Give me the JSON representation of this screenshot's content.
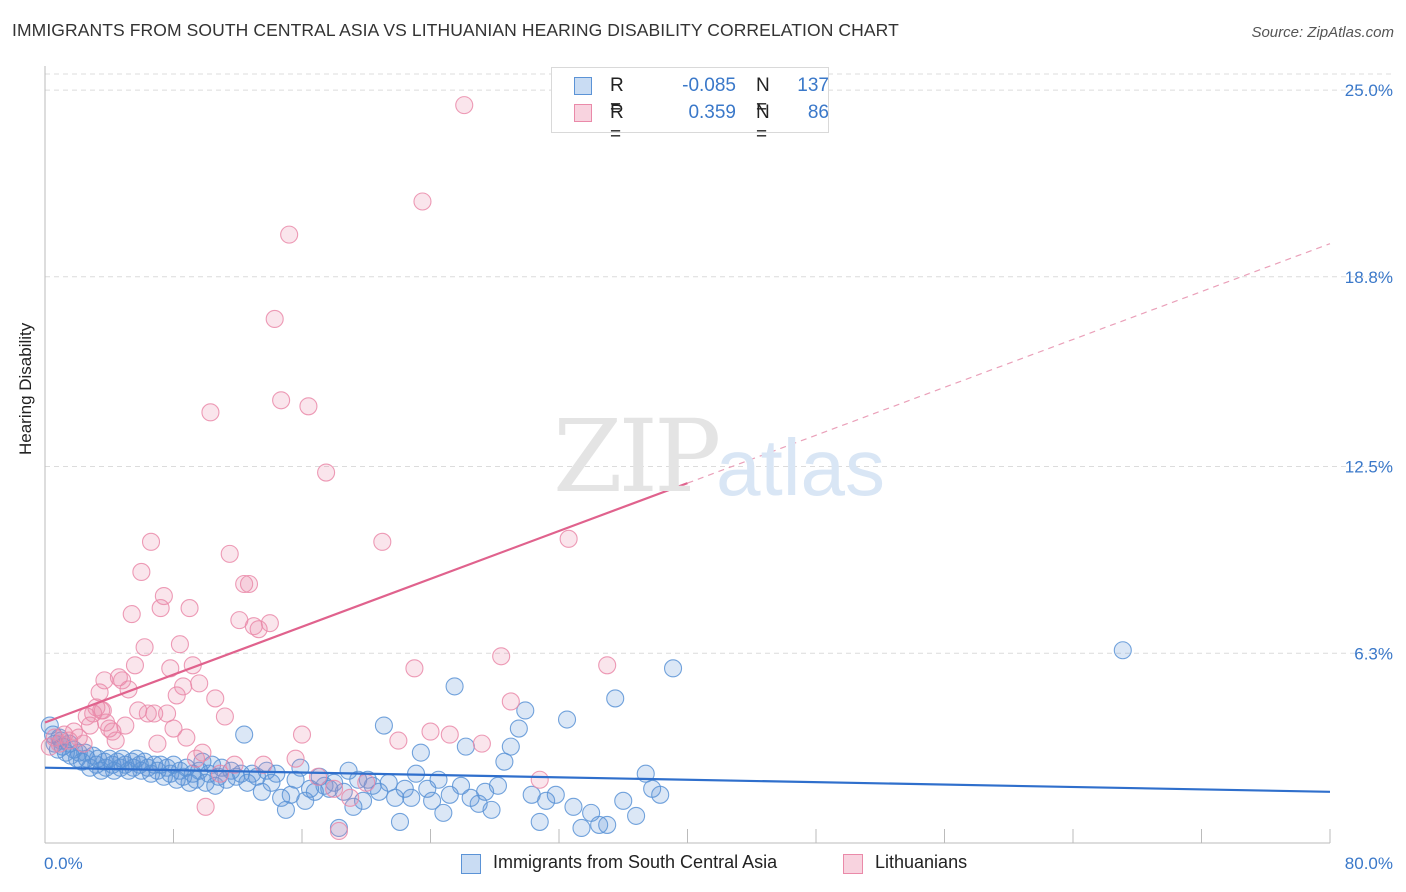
{
  "header": {
    "title": "IMMIGRANTS FROM SOUTH CENTRAL ASIA VS LITHUANIAN HEARING DISABILITY CORRELATION CHART",
    "source": "Source: ZipAtlas.com"
  },
  "watermark": {
    "zip": "ZIP",
    "atlas": "atlas"
  },
  "legend": {
    "rows": [
      {
        "r_label": "R =",
        "r_value": "-0.085",
        "n_label": "N =",
        "n_value": "137",
        "color": "#5b93d6"
      },
      {
        "r_label": "R =",
        "r_value": "0.359",
        "n_label": "N =",
        "n_value": "86",
        "color": "#ea8aa9"
      }
    ]
  },
  "bottom_legend": [
    {
      "label": "Immigrants from South Central Asia",
      "color": "#5b93d6"
    },
    {
      "label": "Lithuanians",
      "color": "#ea8aa9"
    }
  ],
  "chart_data": {
    "type": "scatter",
    "title": "IMMIGRANTS FROM SOUTH CENTRAL ASIA VS LITHUANIAN HEARING DISABILITY CORRELATION CHART",
    "xlabel": "",
    "ylabel": "Hearing Disability",
    "xlim": [
      0,
      80
    ],
    "ylim": [
      0,
      25.6
    ],
    "x_tick_labels": [
      "0.0%",
      "80.0%"
    ],
    "y_ticks": [
      6.3,
      12.5,
      18.8,
      25.0
    ],
    "y_tick_labels": [
      "6.3%",
      "12.5%",
      "18.8%",
      "25.0%"
    ],
    "grid": true,
    "legend_position": "top-center",
    "series": [
      {
        "name": "Immigrants from South Central Asia",
        "color": "#5b93d6",
        "trend": {
          "x": [
            0,
            80
          ],
          "y": [
            2.5,
            1.7
          ],
          "style": "solid"
        },
        "points": [
          [
            0.3,
            3.9
          ],
          [
            0.5,
            3.6
          ],
          [
            0.6,
            3.3
          ],
          [
            0.8,
            3.1
          ],
          [
            1.0,
            3.4
          ],
          [
            1.1,
            3.2
          ],
          [
            1.3,
            3.0
          ],
          [
            1.5,
            3.3
          ],
          [
            1.6,
            2.9
          ],
          [
            1.8,
            3.1
          ],
          [
            2.0,
            2.8
          ],
          [
            2.1,
            3.0
          ],
          [
            2.3,
            2.7
          ],
          [
            2.5,
            3.0
          ],
          [
            2.6,
            2.8
          ],
          [
            2.8,
            2.5
          ],
          [
            3.0,
            2.9
          ],
          [
            3.2,
            2.6
          ],
          [
            3.3,
            2.8
          ],
          [
            3.5,
            2.4
          ],
          [
            3.7,
            2.7
          ],
          [
            3.8,
            2.5
          ],
          [
            4.0,
            2.8
          ],
          [
            4.2,
            2.6
          ],
          [
            4.3,
            2.4
          ],
          [
            4.5,
            2.7
          ],
          [
            4.7,
            2.5
          ],
          [
            4.8,
            2.8
          ],
          [
            5.0,
            2.6
          ],
          [
            5.2,
            2.4
          ],
          [
            5.4,
            2.7
          ],
          [
            5.5,
            2.5
          ],
          [
            5.7,
            2.8
          ],
          [
            5.9,
            2.6
          ],
          [
            6.0,
            2.4
          ],
          [
            6.2,
            2.7
          ],
          [
            6.4,
            2.5
          ],
          [
            6.6,
            2.3
          ],
          [
            6.8,
            2.6
          ],
          [
            7.0,
            2.4
          ],
          [
            7.2,
            2.6
          ],
          [
            7.4,
            2.2
          ],
          [
            7.6,
            2.5
          ],
          [
            7.8,
            2.3
          ],
          [
            8.0,
            2.6
          ],
          [
            8.2,
            2.1
          ],
          [
            8.4,
            2.4
          ],
          [
            8.6,
            2.2
          ],
          [
            8.8,
            2.5
          ],
          [
            9.0,
            2.0
          ],
          [
            9.2,
            2.3
          ],
          [
            9.4,
            2.1
          ],
          [
            9.6,
            2.4
          ],
          [
            9.8,
            2.7
          ],
          [
            10.0,
            2.0
          ],
          [
            10.2,
            2.3
          ],
          [
            10.4,
            2.6
          ],
          [
            10.6,
            1.9
          ],
          [
            10.8,
            2.2
          ],
          [
            11.0,
            2.5
          ],
          [
            11.3,
            2.1
          ],
          [
            11.6,
            2.4
          ],
          [
            11.9,
            2.2
          ],
          [
            12.2,
            2.3
          ],
          [
            12.4,
            3.6
          ],
          [
            12.6,
            2.0
          ],
          [
            12.9,
            2.3
          ],
          [
            13.2,
            2.2
          ],
          [
            13.5,
            1.7
          ],
          [
            13.8,
            2.4
          ],
          [
            14.1,
            2.0
          ],
          [
            14.4,
            2.3
          ],
          [
            14.7,
            1.5
          ],
          [
            15.0,
            1.1
          ],
          [
            15.3,
            1.6
          ],
          [
            15.6,
            2.1
          ],
          [
            15.9,
            2.5
          ],
          [
            16.2,
            1.4
          ],
          [
            16.5,
            1.8
          ],
          [
            16.8,
            1.7
          ],
          [
            17.1,
            2.2
          ],
          [
            17.4,
            1.9
          ],
          [
            17.7,
            1.8
          ],
          [
            18.0,
            2.0
          ],
          [
            18.3,
            0.5
          ],
          [
            18.6,
            1.7
          ],
          [
            18.9,
            2.4
          ],
          [
            19.2,
            1.2
          ],
          [
            19.5,
            2.1
          ],
          [
            19.8,
            1.4
          ],
          [
            20.1,
            2.1
          ],
          [
            20.4,
            1.9
          ],
          [
            20.8,
            1.7
          ],
          [
            21.1,
            3.9
          ],
          [
            21.4,
            2.0
          ],
          [
            21.8,
            1.5
          ],
          [
            22.1,
            0.7
          ],
          [
            22.4,
            1.8
          ],
          [
            22.8,
            1.5
          ],
          [
            23.1,
            2.3
          ],
          [
            23.4,
            3.0
          ],
          [
            23.8,
            1.8
          ],
          [
            24.1,
            1.4
          ],
          [
            24.5,
            2.1
          ],
          [
            24.8,
            1.0
          ],
          [
            25.2,
            1.6
          ],
          [
            25.5,
            5.2
          ],
          [
            25.9,
            1.9
          ],
          [
            26.2,
            3.2
          ],
          [
            26.5,
            1.5
          ],
          [
            27.0,
            1.3
          ],
          [
            27.4,
            1.7
          ],
          [
            27.8,
            1.1
          ],
          [
            28.2,
            1.9
          ],
          [
            28.6,
            2.7
          ],
          [
            29.0,
            3.2
          ],
          [
            29.5,
            3.8
          ],
          [
            29.9,
            4.4
          ],
          [
            30.3,
            1.6
          ],
          [
            30.8,
            0.7
          ],
          [
            31.2,
            1.4
          ],
          [
            31.8,
            1.6
          ],
          [
            32.5,
            4.1
          ],
          [
            32.9,
            1.2
          ],
          [
            33.4,
            0.5
          ],
          [
            34.0,
            1.0
          ],
          [
            34.5,
            0.6
          ],
          [
            35.0,
            0.6
          ],
          [
            35.5,
            4.8
          ],
          [
            36.0,
            1.4
          ],
          [
            36.8,
            0.9
          ],
          [
            37.4,
            2.3
          ],
          [
            37.8,
            1.8
          ],
          [
            38.3,
            1.6
          ],
          [
            39.1,
            5.8
          ],
          [
            67.1,
            6.4
          ],
          [
            0.9,
            3.5
          ]
        ]
      },
      {
        "name": "Lithuanians",
        "color": "#ea8aa9",
        "trend": {
          "x": [
            0,
            80
          ],
          "y": [
            4.0,
            19.9
          ],
          "solid_to": 40,
          "style": "solid-then-dashed"
        },
        "points": [
          [
            0.3,
            3.2
          ],
          [
            0.6,
            3.5
          ],
          [
            0.9,
            3.3
          ],
          [
            1.2,
            3.6
          ],
          [
            1.5,
            3.4
          ],
          [
            1.8,
            3.7
          ],
          [
            2.1,
            3.5
          ],
          [
            2.4,
            3.3
          ],
          [
            2.6,
            4.2
          ],
          [
            2.8,
            3.9
          ],
          [
            3.0,
            4.3
          ],
          [
            3.2,
            4.5
          ],
          [
            3.4,
            5.0
          ],
          [
            3.5,
            4.4
          ],
          [
            3.6,
            4.4
          ],
          [
            3.7,
            5.4
          ],
          [
            3.8,
            4.0
          ],
          [
            4.0,
            3.8
          ],
          [
            4.2,
            3.7
          ],
          [
            4.4,
            3.4
          ],
          [
            4.6,
            5.5
          ],
          [
            4.8,
            5.4
          ],
          [
            5.0,
            3.9
          ],
          [
            5.2,
            5.1
          ],
          [
            5.4,
            7.6
          ],
          [
            5.6,
            5.9
          ],
          [
            5.8,
            4.4
          ],
          [
            6.0,
            9.0
          ],
          [
            6.2,
            6.5
          ],
          [
            6.4,
            4.3
          ],
          [
            6.6,
            10.0
          ],
          [
            6.8,
            4.3
          ],
          [
            7.0,
            3.3
          ],
          [
            7.2,
            7.8
          ],
          [
            7.4,
            8.2
          ],
          [
            7.6,
            4.3
          ],
          [
            7.8,
            5.8
          ],
          [
            8.0,
            3.8
          ],
          [
            8.2,
            4.9
          ],
          [
            8.4,
            6.6
          ],
          [
            8.6,
            5.2
          ],
          [
            8.8,
            3.5
          ],
          [
            9.0,
            7.8
          ],
          [
            9.2,
            5.9
          ],
          [
            9.4,
            2.8
          ],
          [
            9.6,
            5.3
          ],
          [
            9.8,
            3.0
          ],
          [
            10.0,
            1.2
          ],
          [
            10.3,
            14.3
          ],
          [
            10.6,
            4.8
          ],
          [
            10.9,
            2.3
          ],
          [
            11.2,
            4.2
          ],
          [
            11.5,
            9.6
          ],
          [
            11.8,
            2.6
          ],
          [
            12.1,
            7.4
          ],
          [
            12.4,
            8.6
          ],
          [
            12.7,
            8.6
          ],
          [
            13.0,
            7.2
          ],
          [
            13.3,
            7.1
          ],
          [
            13.6,
            2.6
          ],
          [
            14.0,
            7.3
          ],
          [
            14.3,
            17.4
          ],
          [
            14.7,
            14.7
          ],
          [
            15.2,
            20.2
          ],
          [
            15.6,
            2.8
          ],
          [
            16.0,
            3.6
          ],
          [
            16.4,
            14.5
          ],
          [
            17.0,
            2.2
          ],
          [
            17.5,
            12.3
          ],
          [
            18.0,
            1.8
          ],
          [
            18.3,
            0.4
          ],
          [
            19.0,
            1.5
          ],
          [
            20.0,
            2.0
          ],
          [
            21.0,
            10.0
          ],
          [
            22.0,
            3.4
          ],
          [
            23.0,
            5.8
          ],
          [
            23.5,
            21.3
          ],
          [
            24.0,
            3.7
          ],
          [
            25.2,
            3.6
          ],
          [
            26.1,
            24.5
          ],
          [
            27.2,
            3.3
          ],
          [
            28.4,
            6.2
          ],
          [
            29.0,
            4.7
          ],
          [
            30.8,
            2.1
          ],
          [
            32.6,
            10.1
          ],
          [
            35.0,
            5.9
          ]
        ]
      }
    ]
  }
}
